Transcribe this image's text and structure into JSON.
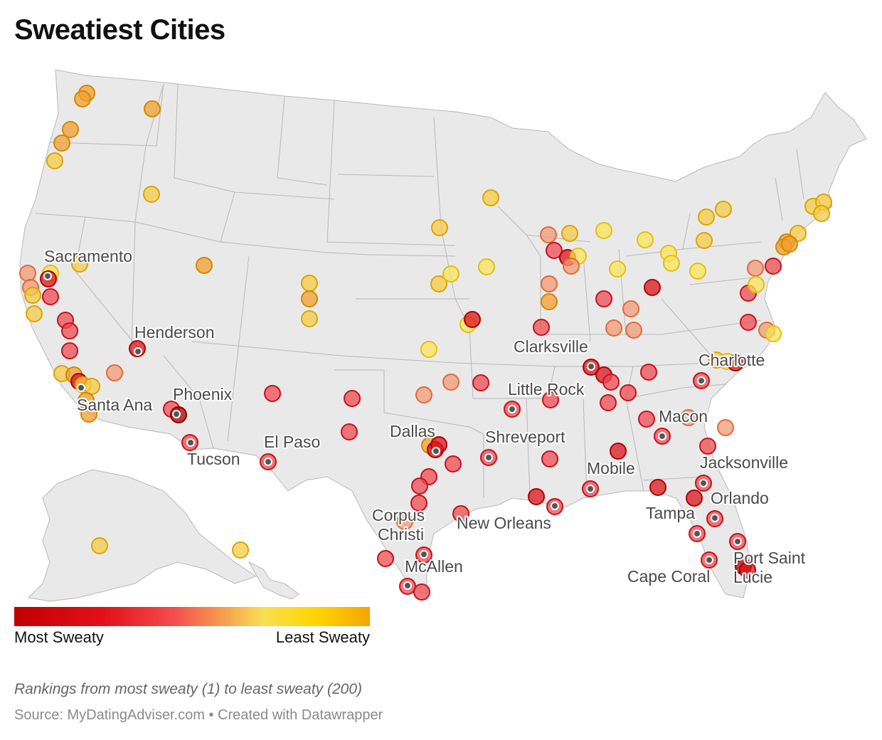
{
  "title": "Sweatiest Cities",
  "legend": {
    "min_label": "Most Sweaty",
    "max_label": "Least Sweaty",
    "colors": [
      "#c00000",
      "#e41018",
      "#f44d4d",
      "#f8e050",
      "#ffd400",
      "#f4a600"
    ]
  },
  "note": "Rankings from most sweaty (1) to least sweaty (200)",
  "source": "Source: MyDatingAdviser.com • Created with Datawrapper",
  "labels": {
    "sacramento": "Sacramento",
    "henderson": "Henderson",
    "santa_ana": "Santa Ana",
    "phoenix": "Phoenix",
    "tucson": "Tucson",
    "el_paso": "El Paso",
    "dallas": "Dallas",
    "corpus_1": "Corpus",
    "corpus_2": "Christi",
    "mcallen": "McAllen",
    "new_orleans": "New Orleans",
    "shreveport": "Shreveport",
    "little_rock": "Little Rock",
    "clarksville": "Clarksville",
    "charlotte": "Charlotte",
    "macon": "Macon",
    "mobile": "Mobile",
    "jacksonville": "Jacksonville",
    "orlando": "Orlando",
    "tampa": "Tampa",
    "cape_coral": "Cape Coral",
    "psl_1": "Port Saint",
    "psl_2": "Lucie"
  }
}
